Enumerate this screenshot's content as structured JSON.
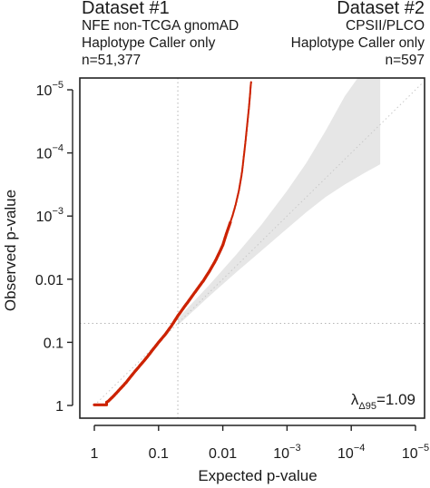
{
  "header_left": {
    "title": "Dataset #1",
    "line1": "NFE non-TCGA gnomAD",
    "line2": "Haplotype Caller only",
    "line3": "n=51,377"
  },
  "header_right": {
    "title": "Dataset #2",
    "line1": "CPSII/PLCO",
    "line2": "Haplotype Caller only",
    "line3": "n=597"
  },
  "chart_data": {
    "type": "scatter",
    "subtype": "qq-plot",
    "xlabel": "Expected p-value",
    "ylabel": "Observed p-value",
    "scale": "-log10",
    "xlim_neglog10": [
      0,
      5
    ],
    "ylim_neglog10": [
      0,
      5
    ],
    "x_ticks": [
      {
        "v": 0,
        "label": "1"
      },
      {
        "v": 1,
        "label": "0.1"
      },
      {
        "v": 2,
        "label": "0.01"
      },
      {
        "v": 3,
        "base": "10",
        "exp": "−3"
      },
      {
        "v": 4,
        "base": "10",
        "exp": "−4"
      },
      {
        "v": 5,
        "base": "10",
        "exp": "−5"
      }
    ],
    "y_ticks": [
      {
        "v": 0,
        "label": "1"
      },
      {
        "v": 1,
        "label": "0.1"
      },
      {
        "v": 2,
        "label": "0.01"
      },
      {
        "v": 3,
        "base": "10",
        "exp": "−3"
      },
      {
        "v": 4,
        "base": "10",
        "exp": "−4"
      },
      {
        "v": 5,
        "base": "10",
        "exp": "−5"
      }
    ],
    "reference_lines": {
      "vertical_x": 1.3,
      "horizontal_y": 1.3,
      "diagonal": true
    },
    "confidence_band": {
      "color": "#e6e6e6",
      "upper": [
        [
          1.3,
          1.38
        ],
        [
          1.8,
          1.92
        ],
        [
          2.2,
          2.38
        ],
        [
          2.6,
          2.86
        ],
        [
          3.0,
          3.4
        ],
        [
          3.3,
          3.84
        ],
        [
          3.6,
          4.35
        ],
        [
          3.9,
          4.9
        ],
        [
          4.1,
          5.2
        ],
        [
          4.45,
          5.2
        ]
      ],
      "lower": [
        [
          4.45,
          3.82
        ],
        [
          4.2,
          3.68
        ],
        [
          3.9,
          3.5
        ],
        [
          3.6,
          3.3
        ],
        [
          3.3,
          3.06
        ],
        [
          3.0,
          2.8
        ],
        [
          2.6,
          2.45
        ],
        [
          2.2,
          2.1
        ],
        [
          1.8,
          1.74
        ],
        [
          1.3,
          1.27
        ]
      ]
    },
    "series": [
      {
        "color": "#cc2200",
        "points": [
          [
            0,
            0.01
          ],
          [
            0.19,
            0.01
          ],
          [
            0.19,
            0.05
          ],
          [
            0.22,
            0.07
          ],
          [
            0.3,
            0.15
          ],
          [
            0.4,
            0.26
          ],
          [
            0.5,
            0.37
          ],
          [
            0.6,
            0.5
          ],
          [
            0.7,
            0.62
          ],
          [
            0.8,
            0.74
          ],
          [
            0.9,
            0.87
          ],
          [
            1.0,
            1.0
          ],
          [
            1.1,
            1.12
          ],
          [
            1.2,
            1.26
          ],
          [
            1.3,
            1.42
          ],
          [
            1.4,
            1.56
          ],
          [
            1.5,
            1.7
          ],
          [
            1.6,
            1.84
          ],
          [
            1.7,
            1.98
          ],
          [
            1.8,
            2.14
          ],
          [
            1.9,
            2.32
          ],
          [
            2.0,
            2.54
          ],
          [
            2.05,
            2.7
          ],
          [
            2.1,
            2.85
          ],
          [
            2.15,
            3.0
          ],
          [
            2.2,
            3.18
          ],
          [
            2.25,
            3.4
          ],
          [
            2.3,
            3.7
          ],
          [
            2.35,
            4.15
          ],
          [
            2.38,
            4.45
          ],
          [
            2.41,
            4.75
          ],
          [
            2.43,
            5.0
          ],
          [
            2.44,
            5.12
          ]
        ]
      }
    ],
    "annotation": {
      "lambda_symbol": "λ",
      "lambda_subscript": "Δ95",
      "lambda_value": "=1.09"
    }
  }
}
